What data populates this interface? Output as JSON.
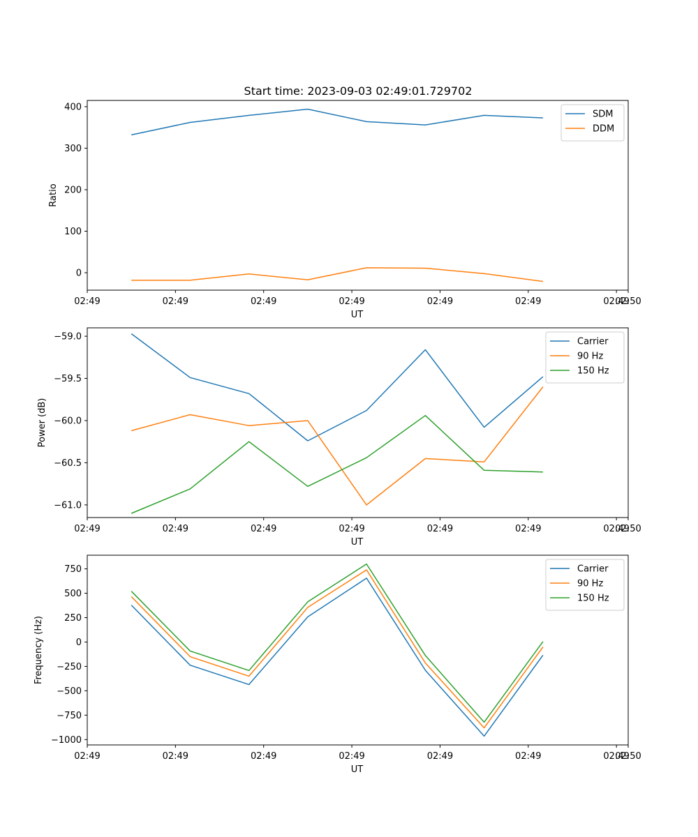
{
  "figure": {
    "title": "Start time: 2023-09-03 02:49:01.729702",
    "colors": {
      "blue": "#1f77b4",
      "orange": "#ff7f0e",
      "green": "#2ca02c"
    }
  },
  "chart_data": [
    {
      "type": "line",
      "xlabel": "UT",
      "ylabel": "Ratio",
      "x_tick_labels": [
        "02:49",
        "02:49",
        "02:49",
        "02:49",
        "02:49",
        "02:49",
        "02:49"
      ],
      "x_tick_last_label": "02:50",
      "xlim": [
        0,
        9.2
      ],
      "x_ticks": [
        0,
        1.5,
        3,
        4.5,
        6,
        7.5,
        9
      ],
      "x_last_tick": 9.2,
      "x": [
        0.75,
        1.75,
        2.75,
        3.75,
        4.75,
        5.75,
        6.75,
        7.75
      ],
      "ylim": [
        -42,
        415
      ],
      "y_ticks": [
        0,
        100,
        200,
        300,
        400
      ],
      "y_tick_labels": [
        "0",
        "100",
        "200",
        "300",
        "400"
      ],
      "legend": "top-right",
      "series": [
        {
          "name": "SDM",
          "color": "#1f77b4",
          "values": [
            332,
            362,
            379,
            394,
            364,
            356,
            379,
            373
          ]
        },
        {
          "name": "DDM",
          "color": "#ff7f0e",
          "values": [
            -18,
            -18,
            -3,
            -17,
            12,
            11,
            -2,
            -21
          ]
        }
      ]
    },
    {
      "type": "line",
      "xlabel": "UT",
      "ylabel": "Power (dB)",
      "x_tick_labels": [
        "02:49",
        "02:49",
        "02:49",
        "02:49",
        "02:49",
        "02:49",
        "02:49"
      ],
      "x_tick_last_label": "02:50",
      "xlim": [
        0,
        9.2
      ],
      "x_ticks": [
        0,
        1.5,
        3,
        4.5,
        6,
        7.5,
        9
      ],
      "x_last_tick": 9.2,
      "x": [
        0.75,
        1.75,
        2.75,
        3.75,
        4.75,
        5.75,
        6.75,
        7.75
      ],
      "ylim": [
        -61.15,
        -58.9
      ],
      "y_ticks": [
        -59.0,
        -59.5,
        -60.0,
        -60.5,
        -61.0
      ],
      "y_tick_labels": [
        "−59.0",
        "−59.5",
        "−60.0",
        "−60.5",
        "−61.0"
      ],
      "legend": "top-right",
      "series": [
        {
          "name": "Carrier",
          "color": "#1f77b4",
          "values": [
            -58.97,
            -59.49,
            -59.68,
            -60.24,
            -59.88,
            -59.16,
            -60.08,
            -59.48
          ]
        },
        {
          "name": "90 Hz",
          "color": "#ff7f0e",
          "values": [
            -60.12,
            -59.93,
            -60.06,
            -60.0,
            -61.0,
            -60.45,
            -60.49,
            -59.6
          ]
        },
        {
          "name": "150 Hz",
          "color": "#2ca02c",
          "values": [
            -61.1,
            -60.81,
            -60.25,
            -60.78,
            -60.44,
            -59.94,
            -60.59,
            -60.61
          ]
        }
      ]
    },
    {
      "type": "line",
      "xlabel": "UT",
      "ylabel": "Frequency (Hz)",
      "x_tick_labels": [
        "02:49",
        "02:49",
        "02:49",
        "02:49",
        "02:49",
        "02:49",
        "02:49"
      ],
      "x_tick_last_label": "02:50",
      "xlim": [
        0,
        9.2
      ],
      "x_ticks": [
        0,
        1.5,
        3,
        4.5,
        6,
        7.5,
        9
      ],
      "x_last_tick": 9.2,
      "x": [
        0.75,
        1.75,
        2.75,
        3.75,
        4.75,
        5.75,
        6.75,
        7.75
      ],
      "ylim": [
        -1055,
        890
      ],
      "y_ticks": [
        750,
        500,
        250,
        0,
        -250,
        -500,
        -750,
        -1000
      ],
      "y_tick_labels": [
        "750",
        "500",
        "250",
        "0",
        "−250",
        "−500",
        "−750",
        "−1000"
      ],
      "legend": "top-right",
      "series": [
        {
          "name": "Carrier",
          "color": "#1f77b4",
          "values": [
            378,
            -238,
            -436,
            258,
            655,
            -290,
            -965,
            -135
          ]
        },
        {
          "name": "90 Hz",
          "color": "#ff7f0e",
          "values": [
            465,
            -150,
            -350,
            355,
            740,
            -215,
            -880,
            -50
          ]
        },
        {
          "name": "150 Hz",
          "color": "#2ca02c",
          "values": [
            520,
            -92,
            -292,
            412,
            800,
            -138,
            -822,
            5
          ]
        }
      ]
    }
  ]
}
